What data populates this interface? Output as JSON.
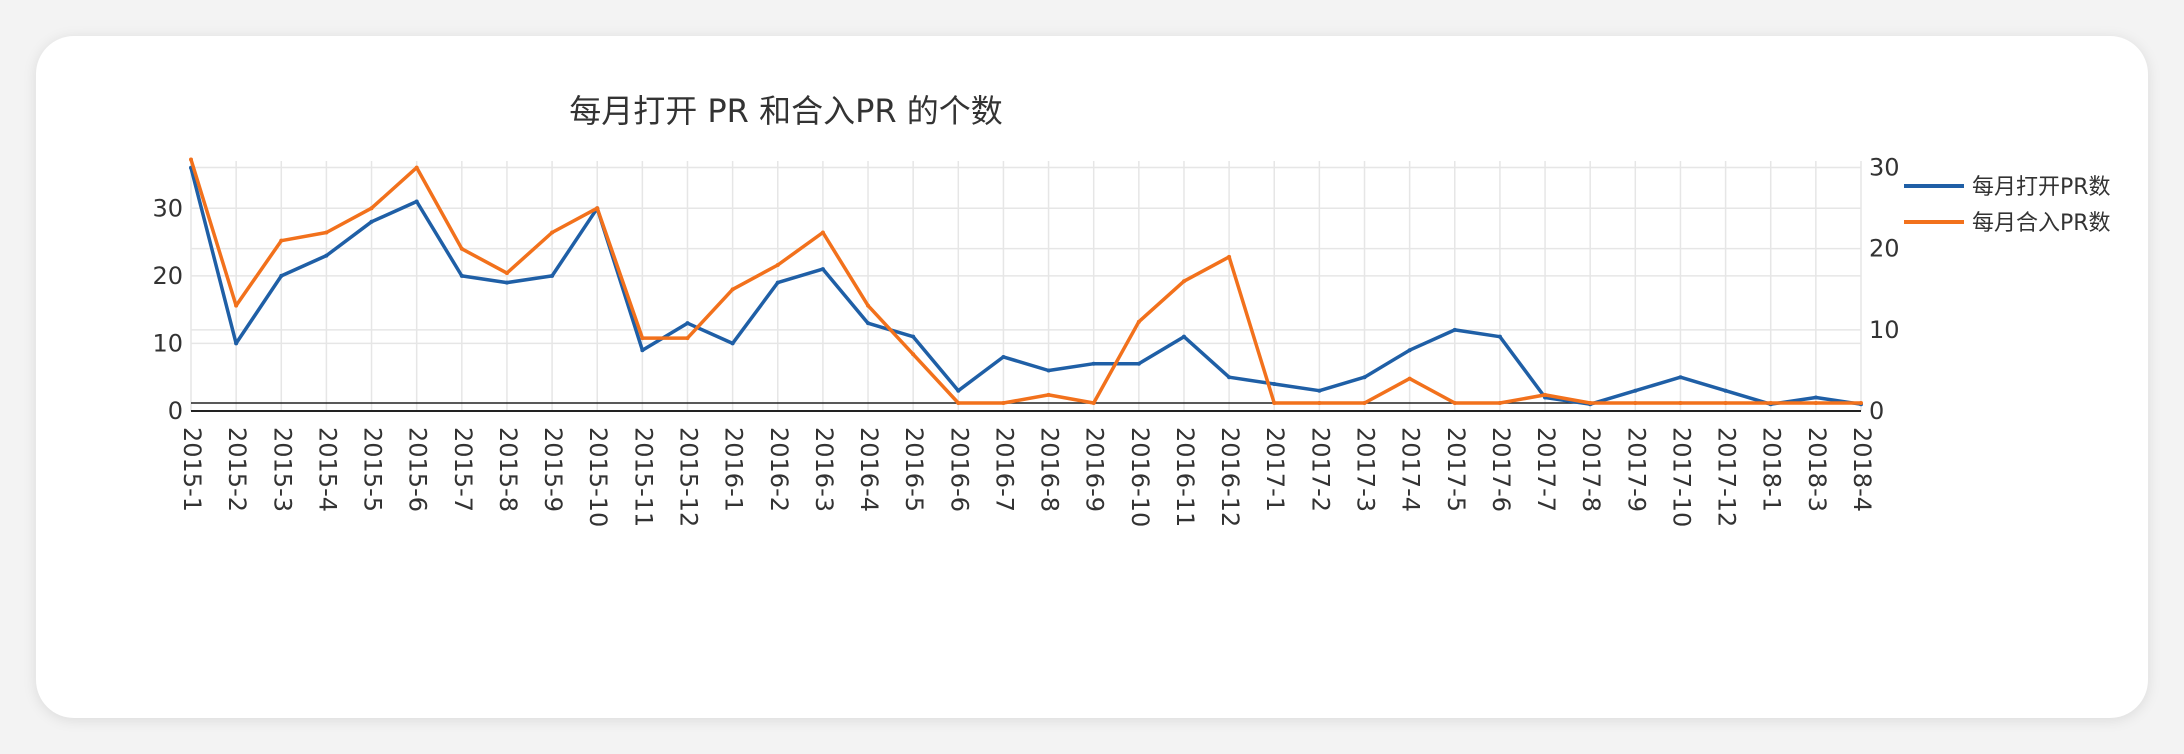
{
  "chart_data": {
    "type": "line",
    "title": "每月打开 PR 和合入PR 的个数",
    "categories": [
      "2015-1",
      "2015-2",
      "2015-3",
      "2015-4",
      "2015-5",
      "2015-6",
      "2015-7",
      "2015-8",
      "2015-9",
      "2015-10",
      "2015-11",
      "2015-12",
      "2016-1",
      "2016-2",
      "2016-3",
      "2016-4",
      "2016-5",
      "2016-6",
      "2016-7",
      "2016-8",
      "2016-9",
      "2016-10",
      "2016-11",
      "2016-12",
      "2017-1",
      "2017-2",
      "2017-3",
      "2017-4",
      "2017-5",
      "2017-6",
      "2017-7",
      "2017-8",
      "2017-9",
      "2017-10",
      "2017-12",
      "2018-1",
      "2018-3",
      "2018-4"
    ],
    "series": [
      {
        "name": "每月打开PR数",
        "axis": "left",
        "color": "#1f5fa6",
        "values": [
          36,
          10,
          20,
          23,
          28,
          31,
          20,
          19,
          20,
          30,
          9,
          13,
          10,
          19,
          21,
          13,
          11,
          3,
          8,
          6,
          7,
          7,
          11,
          5,
          4,
          3,
          5,
          9,
          12,
          11,
          2,
          1,
          3,
          5,
          3,
          1,
          2,
          1
        ]
      },
      {
        "name": "每月合入PR数",
        "axis": "right",
        "color": "#f2711c",
        "values": [
          30,
          12,
          20,
          21,
          24,
          29,
          19,
          16,
          21,
          24,
          8,
          8,
          14,
          17,
          21,
          12,
          6,
          0,
          0,
          1,
          0,
          10,
          15,
          18,
          0,
          0,
          0,
          3,
          0,
          0,
          1,
          0,
          0,
          0,
          0,
          0,
          0,
          0
        ]
      }
    ],
    "yaxis_left": {
      "range": [
        0,
        37
      ],
      "ticks": [
        0,
        10,
        20,
        30
      ]
    },
    "yaxis_right": {
      "range": [
        0,
        30.8
      ],
      "ticks": [
        0,
        10,
        20,
        30
      ]
    },
    "grid": true,
    "legend_position": "top-right"
  }
}
